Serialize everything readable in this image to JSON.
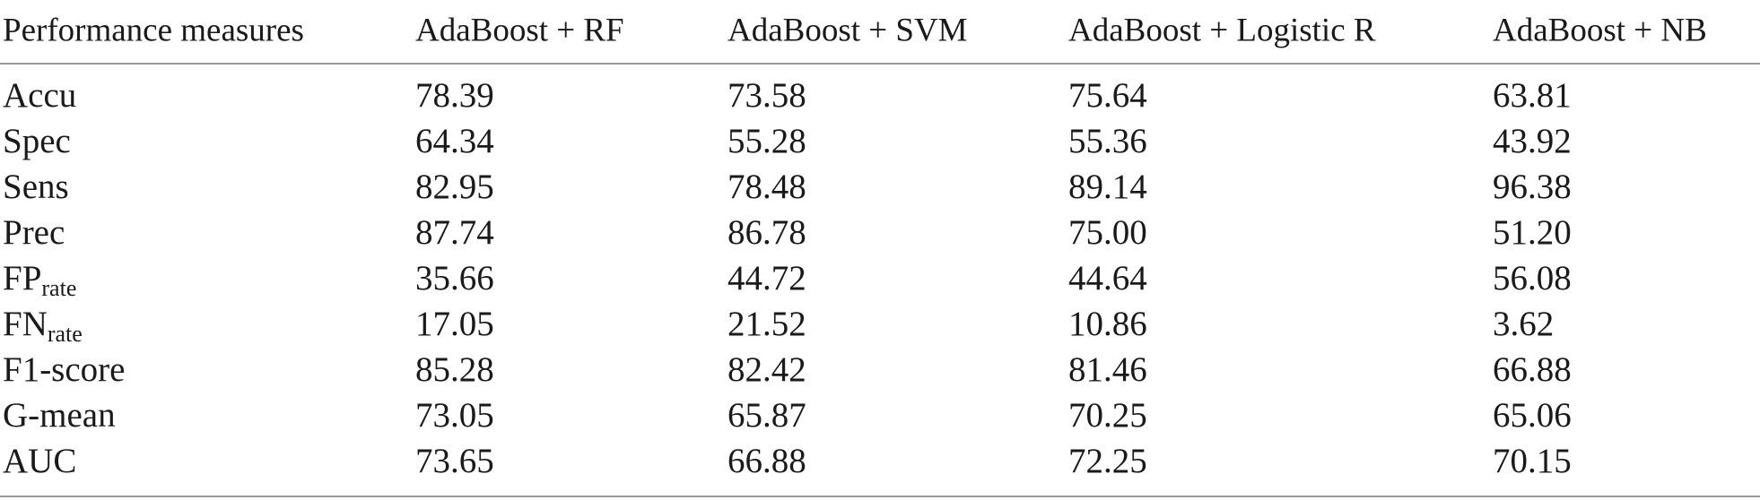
{
  "table": {
    "header": [
      "Performance measures",
      "AdaBoost + RF",
      "AdaBoost + SVM",
      "AdaBoost + Logistic R",
      "AdaBoost + NB"
    ],
    "rows": [
      {
        "label": "Accu",
        "values": [
          "78.39",
          "73.58",
          "75.64",
          "63.81"
        ]
      },
      {
        "label": "Spec",
        "values": [
          "64.34",
          "55.28",
          "55.36",
          "43.92"
        ]
      },
      {
        "label": "Sens",
        "values": [
          "82.95",
          "78.48",
          "89.14",
          "96.38"
        ]
      },
      {
        "label": "Prec",
        "values": [
          "87.74",
          "86.78",
          "75.00",
          "51.20"
        ]
      },
      {
        "label": "FP",
        "label_sub": "rate",
        "values": [
          "35.66",
          "44.72",
          "44.64",
          "56.08"
        ]
      },
      {
        "label": "FN",
        "label_sub": "rate",
        "values": [
          "17.05",
          "21.52",
          "10.86",
          "3.62"
        ]
      },
      {
        "label": "F1-score",
        "values": [
          "85.28",
          "82.42",
          "81.46",
          "66.88"
        ]
      },
      {
        "label": "G-mean",
        "values": [
          "73.05",
          "65.87",
          "70.25",
          "65.06"
        ]
      },
      {
        "label": "AUC",
        "values": [
          "73.65",
          "66.88",
          "72.25",
          "70.15"
        ]
      }
    ]
  }
}
